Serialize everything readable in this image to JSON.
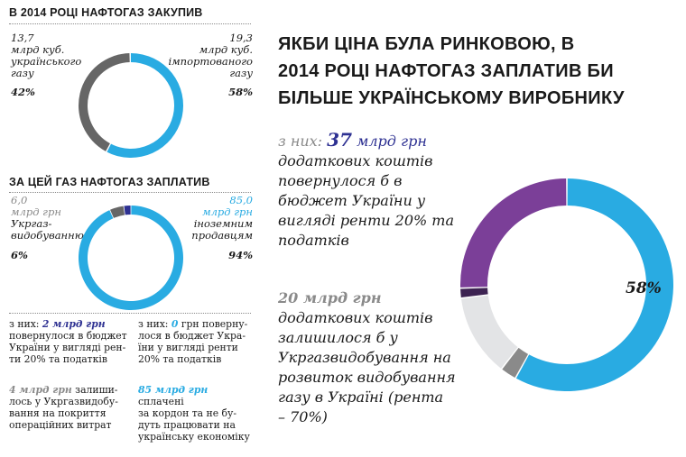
{
  "chart_data": [
    {
      "type": "pie",
      "title": "В 2014 РОЦІ НАФТОГАЗ ЗАКУПИВ",
      "categories": [
        "13,7 млрд куб. українського газу",
        "19,3 млрд куб. імпортованого газу"
      ],
      "values": [
        42,
        58
      ],
      "colors": [
        "#666666",
        "#29abe2"
      ],
      "labels": {
        "left_value": "13,7",
        "left_lines": [
          "млрд куб.",
          "українського",
          "газу"
        ],
        "left_pct": "42%",
        "right_value": "19,3",
        "right_lines": [
          "млрд куб.",
          "імпортованого",
          "газу"
        ],
        "right_pct": "58%"
      }
    },
    {
      "type": "pie",
      "title": "ЗА ЦЕЙ ГАЗ НАФТОГАЗ ЗАПЛАТИВ",
      "categories": [
        "6,0 млрд грн Укргазвидобуванню",
        "85,0 млрд грн іноземним продавцям"
      ],
      "values": [
        6,
        94
      ],
      "segments": [
        {
          "part": "2 млрд грн",
          "value": 2,
          "color": "#2e3192"
        },
        {
          "part": "4 млрд грн",
          "value": 4,
          "color": "#666666"
        },
        {
          "part": "85 млрд грн",
          "value": 85,
          "color": "#29abe2"
        },
        {
          "part": "0 грн",
          "value": 0,
          "color": "#1a1a1a"
        }
      ],
      "labels": {
        "left_value": "6,0",
        "left_lines": [
          "млрд грн",
          "Укргаз-",
          "видобуванню"
        ],
        "left_pct": "6%",
        "right_value": "85,0",
        "right_lines": [
          "млрд грн",
          "іноземним",
          "продавцям"
        ],
        "right_pct": "94%"
      }
    },
    {
      "type": "pie",
      "title": "ЯКБИ ЦІНА БУЛА РИНКОВОЮ, В 2014 РОЦІ НАФТОГАЗ ЗАПЛАТИВ БИ БІЛЬШЕ УКРАЇНСЬКОМУ ВИРОБНИКУ",
      "segments": [
        {
          "part": "blue",
          "value": 58,
          "color": "#29abe2"
        },
        {
          "part": "grey",
          "value": 2.5,
          "color": "#8a8a8a"
        },
        {
          "part": "light",
          "value": 12.5,
          "color": "#e3e4e6"
        },
        {
          "part": "dark",
          "value": 1.5,
          "color": "#3d2352"
        },
        {
          "part": "purple",
          "value": 25.5,
          "color": "#7b3f98"
        }
      ],
      "annotations": [
        "58%"
      ]
    }
  ],
  "left": {
    "title1": "В 2014 РОЦІ НАФТОГАЗ ЗАКУПИВ",
    "title2": "ЗА ЦЕЙ ГАЗ НАФТОГАЗ ЗАПЛАТИВ",
    "notes": {
      "a_lines": [
        "з них: ",
        "2 млрд грн",
        " повернулося в бюджет",
        "України у вигляді рен-",
        "ти 20% та податків"
      ],
      "b_lines": [
        "з них: ",
        "0",
        " грн поверну-",
        "лося в бюджет Укра-",
        "їни у вигляді ренти",
        "20% та податків"
      ],
      "c_lines": [
        "4 млрд грн",
        " залиши-",
        "лось у Укргазвидобу-",
        "вання на покриття",
        "операційних витрат"
      ],
      "d_lines": [
        "85 млрд грн",
        " сплачені",
        "за кордон та не бу-",
        "дуть працювати на",
        "українську економіку"
      ]
    }
  },
  "right": {
    "title_lines": [
      "ЯКБИ ЦІНА БУЛА РИНКОВОЮ, В",
      "2014 РОЦІ НАФТОГАЗ ЗАПЛАТИВ БИ",
      "БІЛЬШЕ УКРАЇНСЬКОМУ ВИРОБНИКУ"
    ],
    "p1_prefix": "з них: ",
    "p1_num": "37",
    "p1_unit": " млрд грн",
    "p1_lines": [
      "додаткових коштів",
      "повернулося б в",
      "бюджет України у",
      "вигляді ренти 20% та",
      "податків"
    ],
    "p2_head": "20 млрд грн",
    "p2_lines": [
      "додаткових коштів",
      "залишилося б у",
      "Укргазвидобування на",
      "розвиток видобування",
      "газу в Україні (рента",
      "– 70%)"
    ],
    "pct_label": "58%"
  }
}
